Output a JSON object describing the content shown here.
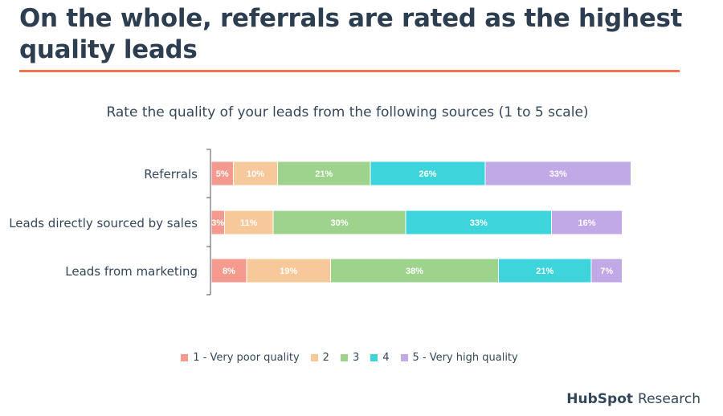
{
  "title": "On the whole, referrals are rated as the highest quality leads",
  "brand": {
    "logo": "HubSpot",
    "suffix": "Research"
  },
  "colors": {
    "accent_rule": "#f2714f"
  },
  "chart_data": {
    "type": "bar",
    "orientation": "horizontal",
    "stacked": true,
    "title": "Rate the quality of your leads from the following sources (1 to 5 scale)",
    "categories": [
      "Referrals",
      "Leads directly sourced by sales",
      "Leads from marketing"
    ],
    "series": [
      {
        "name": "1 - Very poor quality",
        "color": "#f59a8f",
        "values": [
          5,
          3,
          8
        ]
      },
      {
        "name": "2",
        "color": "#f7c89a",
        "values": [
          10,
          11,
          19
        ]
      },
      {
        "name": "3",
        "color": "#9ed38e",
        "values": [
          21,
          30,
          38
        ]
      },
      {
        "name": "4",
        "color": "#3ed4dc",
        "values": [
          26,
          33,
          21
        ]
      },
      {
        "name": "5 - Very high quality",
        "color": "#c1a8e6",
        "values": [
          33,
          16,
          7
        ]
      }
    ],
    "data_labels": [
      [
        "5%",
        "10%",
        "21%",
        "26%",
        "33%"
      ],
      [
        "3%",
        "11%",
        "30%",
        "33%",
        "16%"
      ],
      [
        "8%",
        "19%",
        "38%",
        "21%",
        "7%"
      ]
    ],
    "legend_position": "bottom",
    "grid": false
  }
}
